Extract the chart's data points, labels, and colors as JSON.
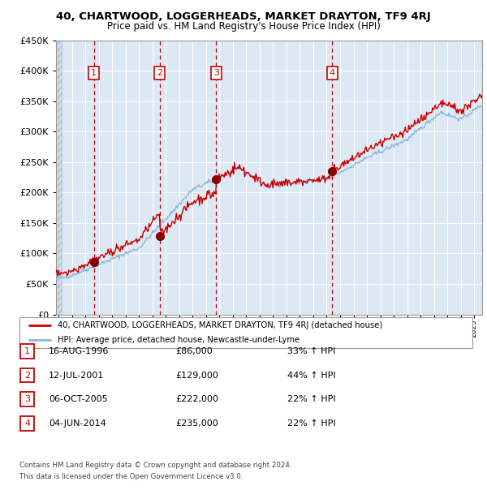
{
  "title": "40, CHARTWOOD, LOGGERHEADS, MARKET DRAYTON, TF9 4RJ",
  "subtitle": "Price paid vs. HM Land Registry's House Price Index (HPI)",
  "ylim": [
    0,
    450000
  ],
  "yticks": [
    0,
    50000,
    100000,
    150000,
    200000,
    250000,
    300000,
    350000,
    400000,
    450000
  ],
  "xlim_start": 1993.8,
  "xlim_end": 2025.6,
  "plot_bg_color": "#dce9f5",
  "grid_color": "#ffffff",
  "red_line_color": "#cc0000",
  "blue_line_color": "#88b8d8",
  "sale_marker_color": "#880000",
  "vline_color": "#cc0000",
  "transactions": [
    {
      "num": 1,
      "date_x": 1996.62,
      "price": 86000
    },
    {
      "num": 2,
      "date_x": 2001.53,
      "price": 129000
    },
    {
      "num": 3,
      "date_x": 2005.76,
      "price": 222000
    },
    {
      "num": 4,
      "date_x": 2014.42,
      "price": 235000
    }
  ],
  "legend_label_red": "40, CHARTWOOD, LOGGERHEADS, MARKET DRAYTON, TF9 4RJ (detached house)",
  "legend_label_blue": "HPI: Average price, detached house, Newcastle-under-Lyme",
  "footer_line1": "Contains HM Land Registry data © Crown copyright and database right 2024.",
  "footer_line2": "This data is licensed under the Open Government Licence v3.0.",
  "table_rows": [
    [
      "1",
      "16-AUG-1996",
      "£86,000",
      "33% ↑ HPI"
    ],
    [
      "2",
      "12-JUL-2001",
      "£129,000",
      "44% ↑ HPI"
    ],
    [
      "3",
      "06-OCT-2005",
      "£222,000",
      "22% ↑ HPI"
    ],
    [
      "4",
      "04-JUN-2014",
      "£235,000",
      "22% ↑ HPI"
    ]
  ]
}
